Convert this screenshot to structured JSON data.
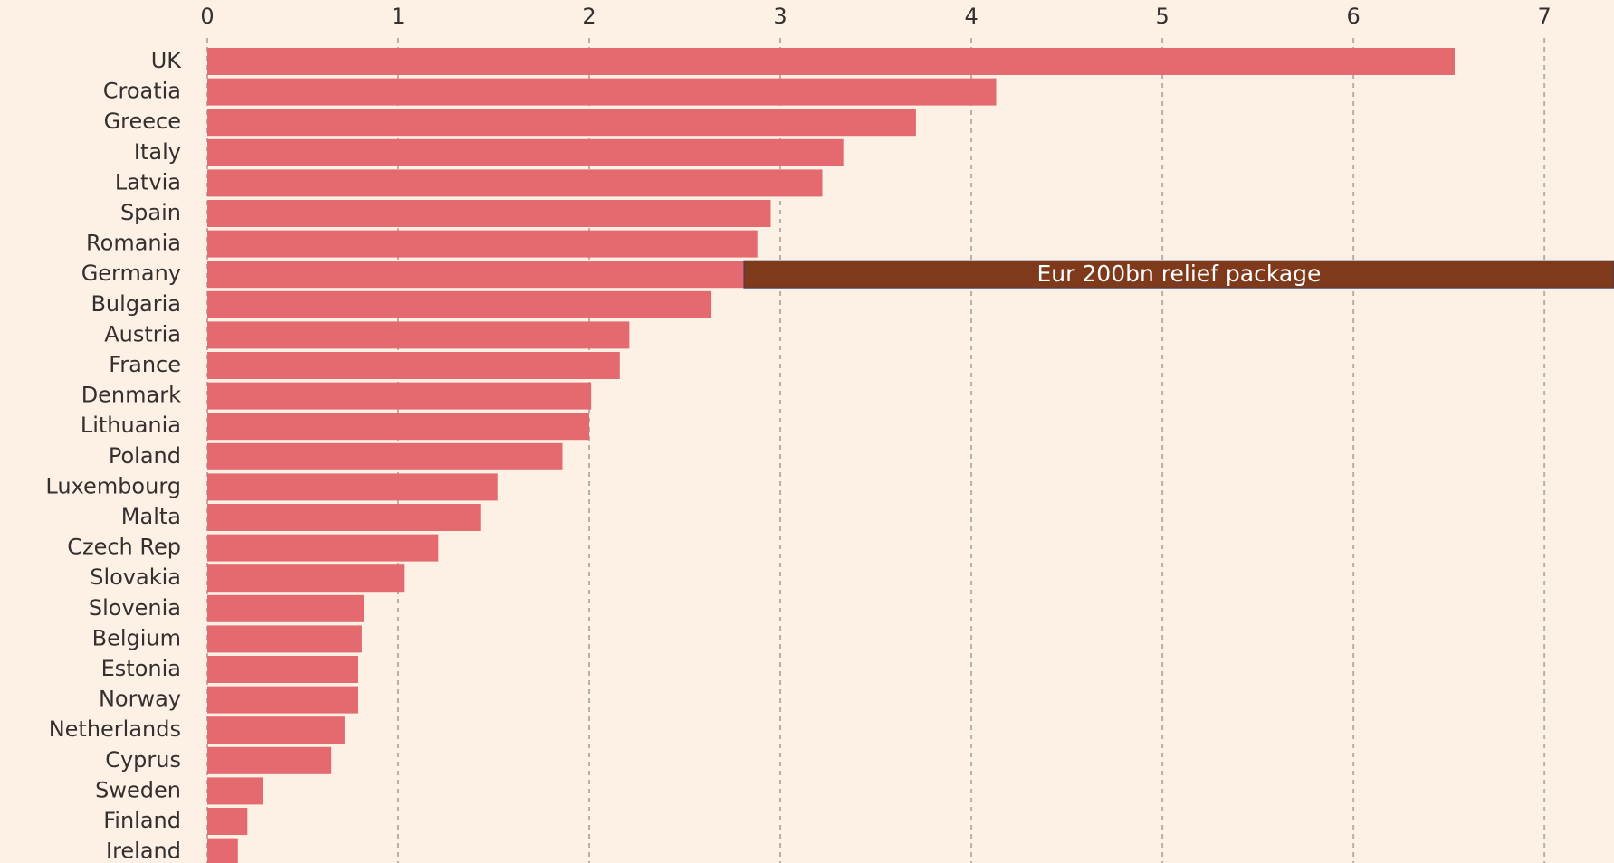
{
  "chart_data": {
    "type": "bar",
    "orientation": "horizontal",
    "categories": [
      "UK",
      "Croatia",
      "Greece",
      "Italy",
      "Latvia",
      "Spain",
      "Romania",
      "Germany",
      "Bulgaria",
      "Austria",
      "France",
      "Denmark",
      "Lithuania",
      "Poland",
      "Luxembourg",
      "Malta",
      "Czech Rep",
      "Slovakia",
      "Slovenia",
      "Belgium",
      "Estonia",
      "Norway",
      "Netherlands",
      "Cyprus",
      "Sweden",
      "Finland",
      "Ireland"
    ],
    "values": [
      6.53,
      4.13,
      3.71,
      3.33,
      3.22,
      2.95,
      2.88,
      2.81,
      2.64,
      2.21,
      2.16,
      2.01,
      2.0,
      1.86,
      1.52,
      1.43,
      1.21,
      1.03,
      0.82,
      0.81,
      0.79,
      0.79,
      0.72,
      0.65,
      0.29,
      0.21,
      0.16
    ],
    "color": "#e46a70",
    "xlim": [
      0,
      7.35
    ],
    "xticks": [
      0,
      1,
      2,
      3,
      4,
      5,
      6,
      7
    ],
    "grid": true,
    "annotation": {
      "text": "Eur 200bn relief package",
      "category_index": 7,
      "color": "#7f3a1c"
    }
  }
}
